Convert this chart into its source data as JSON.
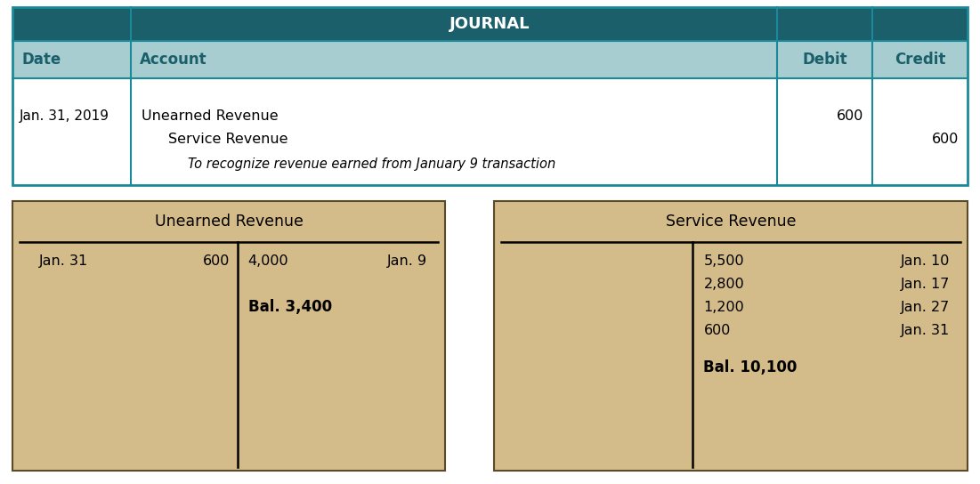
{
  "journal_title": "JOURNAL",
  "header_bg": "#1a5f6a",
  "header_text_color": "#ffffff",
  "subheader_bg": "#a8cdd1",
  "subheader_text_color": "#1a5f6a",
  "row_bg": "#ffffff",
  "border_color": "#1a8a9a",
  "col_headers": [
    "Date",
    "Account",
    "Debit",
    "Credit"
  ],
  "journal_date": "Jan. 31, 2019",
  "taccount_bg": "#d4bc8a",
  "taccount_border": "#5a4a2a",
  "t1_title": "Unearned Revenue",
  "t1_balance_label": "Bal. 3,400",
  "t2_title": "Service Revenue",
  "t2_credit_entries": [
    [
      "5,500",
      "Jan. 10"
    ],
    [
      "2,800",
      "Jan. 17"
    ],
    [
      "1,200",
      "Jan. 27"
    ],
    [
      "600",
      "Jan. 31"
    ]
  ],
  "t2_balance_label": "Bal. 10,100",
  "fig_bg": "#ffffff"
}
